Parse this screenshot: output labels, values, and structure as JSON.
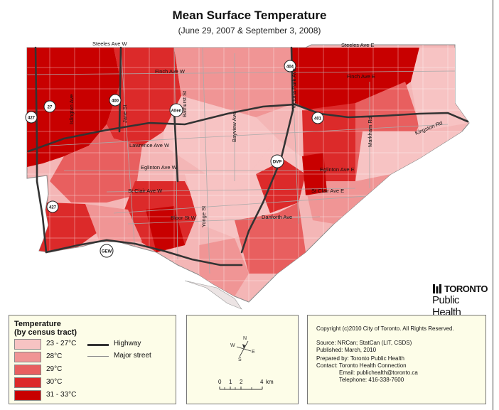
{
  "title": "Mean Surface Temperature",
  "subtitle": "(June 29, 2007 & September 3, 2008)",
  "colors": {
    "t23_27": "#f7c3c3",
    "t28": "#f09595",
    "t29": "#e85f5f",
    "t30": "#dc2a2a",
    "t31_33": "#c80000",
    "water": "#ffffff",
    "street": "#aaaaaa",
    "highway": "#333333"
  },
  "streets": {
    "steeles_w": "Steeles Ave W",
    "steeles_e": "Steeles Ave E",
    "finch_w": "Finch Ave W",
    "finch_e": "Finch Ave E",
    "lawrence_w": "Lawrence Ave W",
    "eglinton_w": "Eglinton Ave W",
    "eglinton_e": "Eglinton Ave E",
    "stclair_w": "St Clair Ave W",
    "stclair_e": "St Clair Ave E",
    "bloor": "Bloor St W",
    "danforth": "Danforth Ave",
    "kingston": "Kingston Rd",
    "bayview": "Bayview Ave",
    "yonge": "Yonge St",
    "bathurst": "Bathurst St",
    "jane": "Jane St",
    "islington": "Islington Ave",
    "markham": "Markham Rd",
    "victoria_park": "Victoria Park Ave"
  },
  "highways": {
    "h427": "427",
    "h27": "27",
    "h400": "400",
    "allen": "Allen",
    "h404": "404",
    "h401": "401",
    "dvp": "DVP",
    "h427b": "427",
    "gew": "GEW"
  },
  "logo": {
    "line1": "TORONTO",
    "line2": "Public Health"
  },
  "legend": {
    "title1": "Temperature",
    "title2": "(by census tract)",
    "classes": [
      "23 - 27°C",
      "28°C",
      "29°C",
      "30°C",
      "31 - 33°C"
    ],
    "highway": "Highway",
    "major_street": "Major street"
  },
  "scale": {
    "ticks": [
      "0",
      "1",
      "2",
      "4"
    ],
    "unit": "km"
  },
  "compass": {
    "n": "N",
    "s": "S",
    "e": "E",
    "w": "W"
  },
  "credits": {
    "copyright": "Copyright (c)2010 City of Toronto. All Rights Reserved.",
    "source": "Source: NRCan; StatCan (LIT, CSDS)",
    "published": "Published: March, 2010",
    "prepared": "Prepared by: Toronto Public Health",
    "contact": "Contact: Toronto Health Connection",
    "email": "Email: publichealth@toronto.ca",
    "telephone": "Telephone: 416-338-7600"
  }
}
